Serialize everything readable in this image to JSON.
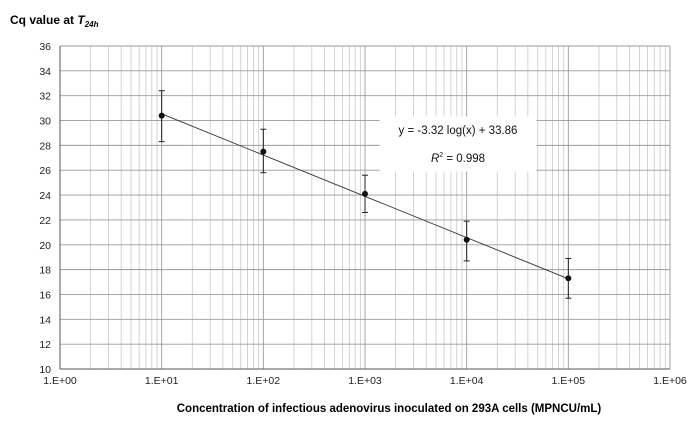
{
  "chart_data": {
    "type": "scatter",
    "y_axis_title": {
      "main": "Cq value at ",
      "italic": "T",
      "subscript": "24h"
    },
    "xlabel": "Concentration of infectious adenovirus inoculated on 293A cells (MPNCU/mL)",
    "x_scale": "log",
    "xlim": [
      1,
      1000000
    ],
    "ylim": [
      10,
      36
    ],
    "y_step": 2,
    "x_tick_labels": [
      "1.E+00",
      "1.E+01",
      "1.E+02",
      "1.E+03",
      "1.E+04",
      "1.E+05",
      "1.E+06"
    ],
    "y_tick_labels": [
      "10",
      "12",
      "14",
      "16",
      "18",
      "20",
      "22",
      "24",
      "26",
      "28",
      "30",
      "32",
      "34",
      "36"
    ],
    "grid": true,
    "series": [
      {
        "points": [
          {
            "x": 10,
            "y": 30.4,
            "err_low": 28.3,
            "err_high": 32.4
          },
          {
            "x": 100,
            "y": 27.5,
            "err_low": 25.8,
            "err_high": 29.3
          },
          {
            "x": 1000,
            "y": 24.1,
            "err_low": 22.6,
            "err_high": 25.6
          },
          {
            "x": 10000,
            "y": 20.4,
            "err_low": 18.7,
            "err_high": 21.9
          },
          {
            "x": 100000,
            "y": 17.3,
            "err_low": 15.7,
            "err_high": 18.9
          }
        ]
      }
    ],
    "trendline": {
      "slope": -3.32,
      "intercept": 33.86,
      "x_start": 10,
      "x_end": 100000
    },
    "annotation": {
      "equation": "y = -3.32 log(x) + 33.86",
      "r2_prefix": "R",
      "r2_sup": "2",
      "r2_value": " = 0.998"
    }
  }
}
